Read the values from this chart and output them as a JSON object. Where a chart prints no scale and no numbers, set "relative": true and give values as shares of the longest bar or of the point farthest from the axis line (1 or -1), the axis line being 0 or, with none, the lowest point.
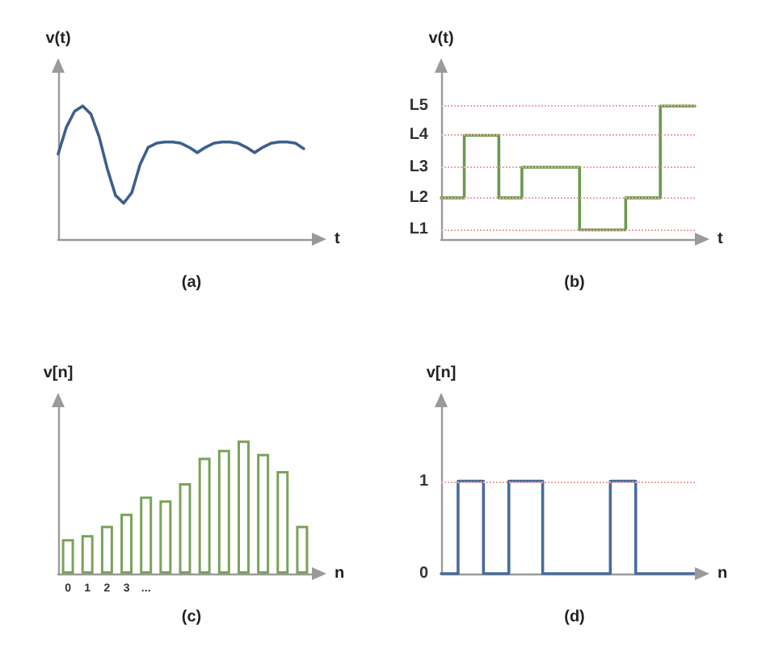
{
  "chart_data": [
    {
      "type": "line",
      "title": "(a)",
      "xlabel": "t",
      "ylabel": "v(t)",
      "relative": true,
      "tick_labels": false,
      "color": "#3d5f8e",
      "categories": [
        null,
        null,
        null,
        null,
        null,
        null,
        null,
        null,
        null,
        null,
        null,
        null,
        null,
        null,
        null,
        null,
        null,
        null,
        null,
        null,
        null,
        null,
        null,
        null,
        null,
        null,
        null,
        null,
        null,
        null,
        null,
        null
      ],
      "values": [
        0.64,
        0.84,
        0.96,
        1,
        0.94,
        0.77,
        0.53,
        0.33,
        0.27,
        0.35,
        0.56,
        0.69,
        0.72,
        0.73,
        0.73,
        0.72,
        0.69,
        0.65,
        0.69,
        0.72,
        0.73,
        0.73,
        0.72,
        0.69,
        0.65,
        0.69,
        0.72,
        0.73,
        0.73,
        0.72,
        0.68,
        null
      ]
    },
    {
      "type": "step",
      "title": "(b)",
      "xlabel": "t",
      "ylabel": "v(t)",
      "relative": true,
      "tick_labels": false,
      "color": "#6b9a4e",
      "categories": [
        null,
        null,
        null,
        null,
        null,
        null,
        null,
        null,
        null,
        null,
        null,
        null,
        null,
        null,
        null,
        null,
        null,
        null,
        null,
        null,
        null,
        null,
        null
      ],
      "values": [
        0.31,
        0.31,
        0.78,
        0.78,
        0.78,
        0.31,
        0.31,
        0.54,
        0.54,
        0.54,
        0.54,
        0.54,
        0.07,
        0.07,
        0.07,
        0.07,
        0.31,
        0.31,
        0.31,
        1,
        1,
        1,
        1
      ],
      "ref_lines": [
        {
          "axis": "y",
          "value": 0.07,
          "label": "L1",
          "color": "#f2a3a3",
          "line_style": "dotted"
        },
        {
          "axis": "y",
          "value": 0.31,
          "label": "L2",
          "color": "#f2a3a3",
          "line_style": "dotted"
        },
        {
          "axis": "y",
          "value": 0.54,
          "label": "L3",
          "color": "#f2a3a3",
          "line_style": "dotted"
        },
        {
          "axis": "y",
          "value": 0.78,
          "label": "L4",
          "color": "#f2a3a3",
          "line_style": "dotted"
        },
        {
          "axis": "y",
          "value": 1,
          "label": "L5",
          "color": "#f2a3a3",
          "line_style": "dotted"
        }
      ]
    },
    {
      "type": "bar",
      "title": "(c)",
      "xlabel": "n",
      "ylabel": "v[n]",
      "relative": true,
      "tick_labels": "x",
      "color": "#7aa35a",
      "categories": [
        "0",
        "1",
        "2",
        "3",
        "...",
        null,
        null,
        null,
        null,
        null,
        null,
        null,
        null
      ],
      "values": [
        0.26,
        0.29,
        0.36,
        0.45,
        0.58,
        0.55,
        0.68,
        0.87,
        0.93,
        1,
        0.9,
        0.77,
        0.36
      ]
    },
    {
      "type": "step",
      "title": "(d)",
      "xlabel": "n",
      "ylabel": "v[n]",
      "tick_labels": "y",
      "color": "#4a6b9a",
      "categories": [
        null,
        null,
        null,
        null,
        null,
        null,
        null,
        null,
        null,
        null,
        null,
        null,
        null,
        null,
        null,
        null,
        null,
        null,
        null,
        null,
        null,
        null,
        null,
        null,
        null,
        null,
        null,
        null,
        null,
        null,
        null
      ],
      "values": [
        0,
        0,
        1,
        1,
        1,
        0,
        0,
        0,
        1,
        1,
        1,
        1,
        0,
        0,
        0,
        0,
        0,
        0,
        0,
        0,
        1,
        1,
        1,
        0,
        0,
        0,
        0,
        0,
        0,
        0,
        0
      ],
      "ylim": [
        0,
        1.8
      ],
      "yticks": [
        0,
        1
      ],
      "ref_lines": [
        {
          "axis": "y",
          "value": 1,
          "color": "#f2a3a3",
          "line_style": "dotted"
        }
      ]
    }
  ]
}
